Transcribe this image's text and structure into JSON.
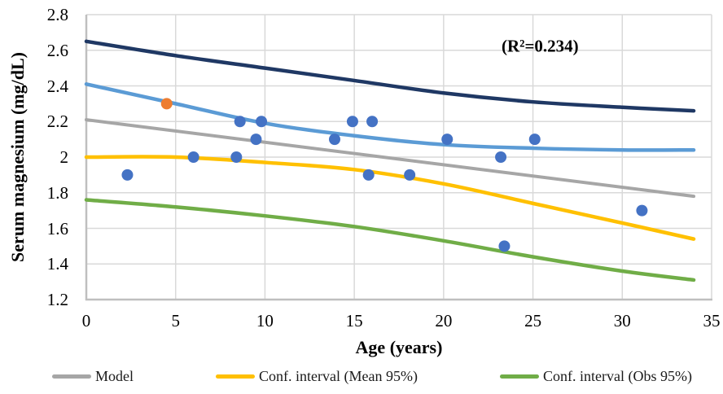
{
  "figure": {
    "y_axis_title": "Serum magnesium (mg/dL)",
    "x_axis_title": "Age (years)",
    "annotation_text": "(R²=0.234)"
  },
  "legend": {
    "items": [
      {
        "label": "Model",
        "color": "#A6A6A6"
      },
      {
        "label": "Conf. interval (Mean 95%)",
        "color": "#FFC000"
      },
      {
        "label": "Conf. interval (Obs 95%)",
        "color": "#70AD47"
      }
    ]
  },
  "chart_data": {
    "type": "scatter",
    "title": "",
    "xlabel": "Age (years)",
    "ylabel": "Serum magnesium (mg/dL)",
    "xlim": [
      0,
      35
    ],
    "ylim": [
      1.2,
      2.8
    ],
    "x_ticks": [
      "0",
      "5",
      "10",
      "15",
      "20",
      "25",
      "30",
      "35"
    ],
    "y_ticks": [
      "1.2",
      "1.4",
      "1.6",
      "1.8",
      "2",
      "2.2",
      "2.4",
      "2.6",
      "2.8"
    ],
    "grid": true,
    "gridline_color": "#D9D9D9",
    "axis_line_color": "#BFBFBF",
    "annotation": {
      "text": "(R²=0.234)",
      "x": 25.4,
      "y": 2.62
    },
    "series": [
      {
        "name": "Conf. interval (Obs 95%) upper",
        "type": "line",
        "smooth": true,
        "color": "#1F3864",
        "x": [
          0,
          5,
          10,
          15,
          20,
          25,
          30,
          34
        ],
        "y": [
          2.65,
          2.57,
          2.5,
          2.43,
          2.36,
          2.31,
          2.28,
          2.26
        ]
      },
      {
        "name": "Conf. interval (Mean 95%) upper",
        "type": "line",
        "smooth": true,
        "color": "#5B9BD5",
        "x": [
          0,
          5,
          10,
          15,
          20,
          25,
          30,
          34
        ],
        "y": [
          2.41,
          2.3,
          2.19,
          2.12,
          2.07,
          2.05,
          2.04,
          2.04
        ]
      },
      {
        "name": "Model",
        "type": "line",
        "smooth": false,
        "color": "#A6A6A6",
        "x": [
          0,
          34
        ],
        "y": [
          2.21,
          1.78
        ]
      },
      {
        "name": "Conf. interval (Mean 95%) lower",
        "type": "line",
        "smooth": true,
        "color": "#FFC000",
        "x": [
          0,
          5,
          10,
          15,
          20,
          25,
          30,
          34
        ],
        "y": [
          2.0,
          2.0,
          1.97,
          1.93,
          1.85,
          1.74,
          1.63,
          1.54
        ]
      },
      {
        "name": "Conf. interval (Obs 95%) lower",
        "type": "line",
        "smooth": true,
        "color": "#70AD47",
        "x": [
          0,
          5,
          10,
          15,
          20,
          25,
          30,
          34
        ],
        "y": [
          1.76,
          1.72,
          1.67,
          1.61,
          1.53,
          1.44,
          1.36,
          1.31
        ]
      },
      {
        "name": "Observations",
        "type": "scatter",
        "color": "#4472C4",
        "radius": 7,
        "points": [
          [
            2.3,
            1.9
          ],
          [
            6.0,
            2.0
          ],
          [
            8.4,
            2.0
          ],
          [
            8.6,
            2.2
          ],
          [
            9.5,
            2.1
          ],
          [
            9.8,
            2.2
          ],
          [
            13.9,
            2.1
          ],
          [
            14.9,
            2.2
          ],
          [
            15.8,
            1.9
          ],
          [
            16.0,
            2.2
          ],
          [
            18.1,
            1.9
          ],
          [
            20.2,
            2.1
          ],
          [
            23.2,
            2.0
          ],
          [
            23.4,
            1.5
          ],
          [
            25.1,
            2.1
          ],
          [
            31.1,
            1.7
          ]
        ]
      },
      {
        "name": "Highlighted observation",
        "type": "scatter",
        "color": "#ED7D31",
        "radius": 7,
        "points": [
          [
            4.5,
            2.3
          ]
        ]
      }
    ]
  }
}
